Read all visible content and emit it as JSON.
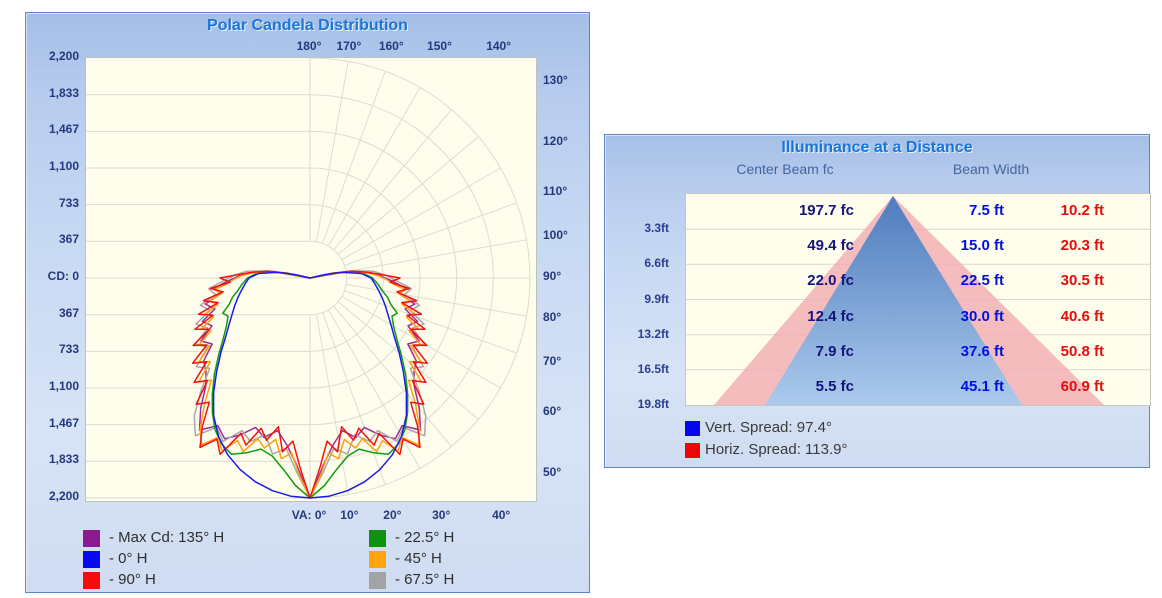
{
  "polar_panel": {
    "title": "Polar Candela Distribution",
    "cd_tick_labels": [
      "2,200",
      "1,833",
      "1,467",
      "1,100",
      "733",
      "367",
      "CD: 0",
      "367",
      "733",
      "1,100",
      "1,467",
      "1,833",
      "2,200"
    ],
    "top_angle_labels": [
      "180°",
      "170°",
      "160°",
      "150°",
      "140°"
    ],
    "right_angle_labels": [
      "130°",
      "120°",
      "110°",
      "100°",
      "90°",
      "80°",
      "70°",
      "60°",
      "50°"
    ],
    "bottom_angle_labels": [
      "VA: 0°",
      "10°",
      "20°",
      "30°",
      "40°"
    ],
    "legend": [
      {
        "label": "- Max Cd: 135° H",
        "color": "#8d1a8d"
      },
      {
        "label": "- 0° H",
        "color": "#0909f0"
      },
      {
        "label": "- 90° H",
        "color": "#f50b0b"
      },
      {
        "label": "- 22.5° H",
        "color": "#0f930f"
      },
      {
        "label": "- 45° H",
        "color": "#ffa40c"
      },
      {
        "label": "- 67.5° H",
        "color": "#a3a3a3"
      }
    ]
  },
  "illuminance_panel": {
    "title": "Illuminance at a Distance",
    "col_headers": [
      "Center Beam fc",
      "Beam Width"
    ],
    "rows": [
      {
        "distance": "3.3ft",
        "fc": "197.7 fc",
        "width_v": "7.5 ft",
        "width_h": "10.2 ft"
      },
      {
        "distance": "6.6ft",
        "fc": "49.4 fc",
        "width_v": "15.0 ft",
        "width_h": "20.3 ft"
      },
      {
        "distance": "9.9ft",
        "fc": "22.0 fc",
        "width_v": "22.5 ft",
        "width_h": "30.5 ft"
      },
      {
        "distance": "13.2ft",
        "fc": "12.4 fc",
        "width_v": "30.0 ft",
        "width_h": "40.6 ft"
      },
      {
        "distance": "16.5ft",
        "fc": "7.9 fc",
        "width_v": "37.6 ft",
        "width_h": "50.8 ft"
      },
      {
        "distance": "19.8ft",
        "fc": "5.5 fc",
        "width_v": "45.1 ft",
        "width_h": "60.9 ft"
      }
    ],
    "vert_spread_label": "Vert.  Spread: 97.4°",
    "horiz_spread_label": "Horiz. Spread: 113.9°",
    "vert_color": "#0606ee",
    "horiz_color": "#ee0606"
  },
  "chart_data": [
    {
      "type": "line",
      "subtype": "polar-photometric",
      "title": "Polar Candela Distribution",
      "units": "candela",
      "radial_ticks": [
        0,
        367,
        733,
        1100,
        1467,
        1833,
        2200
      ],
      "max_cd": 2200,
      "angle_ticks_deg": [
        0,
        10,
        20,
        30,
        40,
        50,
        60,
        70,
        80,
        90,
        100,
        110,
        120,
        130,
        140,
        150,
        160,
        170,
        180
      ],
      "mirrored": true,
      "grid_color": "#dcdcd1",
      "series": [
        {
          "name": "Max Cd: 135° H",
          "color": "#9b2d9b",
          "points": [
            [
              0,
              2200
            ],
            [
              4,
              1880
            ],
            [
              8,
              1680
            ],
            [
              12,
              1560
            ],
            [
              16,
              1660
            ],
            [
              20,
              1590
            ],
            [
              24,
              1720
            ],
            [
              28,
              1820
            ],
            [
              32,
              1740
            ],
            [
              36,
              1880
            ],
            [
              40,
              1700
            ],
            [
              44,
              1500
            ],
            [
              48,
              1400
            ],
            [
              52,
              1350
            ],
            [
              56,
              1180
            ],
            [
              60,
              1260
            ],
            [
              64,
              1090
            ],
            [
              68,
              1160
            ],
            [
              72,
              1000
            ],
            [
              76,
              1080
            ],
            [
              80,
              910
            ],
            [
              84,
              960
            ],
            [
              88,
              820
            ],
            [
              92,
              700
            ],
            [
              96,
              590
            ],
            [
              100,
              380
            ],
            [
              104,
              0
            ]
          ]
        },
        {
          "name": "67.5° H",
          "color": "#a8a8a8",
          "points": [
            [
              0,
              2200
            ],
            [
              4,
              1940
            ],
            [
              8,
              1720
            ],
            [
              12,
              1800
            ],
            [
              16,
              1630
            ],
            [
              20,
              1740
            ],
            [
              24,
              1670
            ],
            [
              28,
              1850
            ],
            [
              32,
              1760
            ],
            [
              36,
              1950
            ],
            [
              40,
              1800
            ],
            [
              44,
              1570
            ],
            [
              48,
              1350
            ],
            [
              52,
              1440
            ],
            [
              56,
              1240
            ],
            [
              60,
              1320
            ],
            [
              64,
              1140
            ],
            [
              68,
              1230
            ],
            [
              72,
              1050
            ],
            [
              76,
              1130
            ],
            [
              80,
              960
            ],
            [
              84,
              1020
            ],
            [
              88,
              870
            ],
            [
              92,
              760
            ],
            [
              96,
              640
            ],
            [
              100,
              420
            ],
            [
              104,
              0
            ]
          ]
        },
        {
          "name": "22.5° H",
          "color": "#119c11",
          "points": [
            [
              0,
              2200
            ],
            [
              4,
              2080
            ],
            [
              8,
              1930
            ],
            [
              12,
              1820
            ],
            [
              16,
              1780
            ],
            [
              20,
              1860
            ],
            [
              24,
              1930
            ],
            [
              28,
              1880
            ],
            [
              32,
              1790
            ],
            [
              36,
              1660
            ],
            [
              40,
              1520
            ],
            [
              45,
              1350
            ],
            [
              50,
              1190
            ],
            [
              55,
              1060
            ],
            [
              60,
              965
            ],
            [
              65,
              905
            ],
            [
              68,
              940
            ],
            [
              72,
              850
            ],
            [
              76,
              800
            ],
            [
              80,
              735
            ],
            [
              85,
              680
            ],
            [
              90,
              625
            ],
            [
              95,
              535
            ],
            [
              100,
              345
            ],
            [
              104,
              0
            ]
          ]
        },
        {
          "name": "45° H",
          "color": "#ffa011",
          "points": [
            [
              0,
              2200
            ],
            [
              3,
              1980
            ],
            [
              6,
              1760
            ],
            [
              9,
              1830
            ],
            [
              12,
              1650
            ],
            [
              15,
              1760
            ],
            [
              18,
              1690
            ],
            [
              21,
              1860
            ],
            [
              24,
              1780
            ],
            [
              27,
              1940
            ],
            [
              30,
              1840
            ],
            [
              33,
              1990
            ],
            [
              36,
              1870
            ],
            [
              40,
              1640
            ],
            [
              44,
              1420
            ],
            [
              47,
              1520
            ],
            [
              50,
              1300
            ],
            [
              53,
              1390
            ],
            [
              56,
              1210
            ],
            [
              59,
              1290
            ],
            [
              62,
              1120
            ],
            [
              65,
              1190
            ],
            [
              68,
              1040
            ],
            [
              71,
              1110
            ],
            [
              74,
              960
            ],
            [
              77,
              1030
            ],
            [
              80,
              900
            ],
            [
              83,
              960
            ],
            [
              86,
              830
            ],
            [
              89,
              760
            ],
            [
              92,
              680
            ],
            [
              95,
              580
            ],
            [
              98,
              420
            ],
            [
              101,
              230
            ],
            [
              104,
              0
            ]
          ]
        },
        {
          "name": "90° H",
          "color": "#f51111",
          "points": [
            [
              0,
              2200
            ],
            [
              3,
              1900
            ],
            [
              6,
              1640
            ],
            [
              9,
              1760
            ],
            [
              12,
              1520
            ],
            [
              15,
              1680
            ],
            [
              18,
              1580
            ],
            [
              21,
              1790
            ],
            [
              24,
              1700
            ],
            [
              27,
              1980
            ],
            [
              30,
              1860
            ],
            [
              33,
              2020
            ],
            [
              36,
              1830
            ],
            [
              39,
              1600
            ],
            [
              42,
              1700
            ],
            [
              45,
              1450
            ],
            [
              48,
              1560
            ],
            [
              51,
              1330
            ],
            [
              54,
              1450
            ],
            [
              57,
              1230
            ],
            [
              60,
              1350
            ],
            [
              63,
              1130
            ],
            [
              66,
              1260
            ],
            [
              69,
              1040
            ],
            [
              72,
              1170
            ],
            [
              75,
              950
            ],
            [
              78,
              1090
            ],
            [
              81,
              880
            ],
            [
              84,
              1000
            ],
            [
              87,
              800
            ],
            [
              90,
              900
            ],
            [
              93,
              700
            ],
            [
              96,
              560
            ],
            [
              99,
              430
            ],
            [
              102,
              240
            ],
            [
              105,
              0
            ]
          ]
        },
        {
          "name": "0° H",
          "color": "#1a1af0",
          "points": [
            [
              0,
              2200
            ],
            [
              5,
              2190
            ],
            [
              10,
              2160
            ],
            [
              15,
              2110
            ],
            [
              20,
              2040
            ],
            [
              25,
              1950
            ],
            [
              30,
              1830
            ],
            [
              35,
              1680
            ],
            [
              40,
              1500
            ],
            [
              45,
              1320
            ],
            [
              50,
              1165
            ],
            [
              55,
              1030
            ],
            [
              60,
              935
            ],
            [
              65,
              860
            ],
            [
              70,
              800
            ],
            [
              75,
              745
            ],
            [
              80,
              695
            ],
            [
              85,
              650
            ],
            [
              90,
              610
            ],
            [
              95,
              515
            ],
            [
              100,
              330
            ],
            [
              103,
              150
            ],
            [
              105,
              0
            ]
          ]
        }
      ]
    },
    {
      "type": "table",
      "title": "Illuminance at a Distance",
      "distance_ft": [
        3.3,
        6.6,
        9.9,
        13.2,
        16.5,
        19.8
      ],
      "center_beam_fc": [
        197.7,
        49.4,
        22.0,
        12.4,
        7.9,
        5.5
      ],
      "beam_width_vert_ft": [
        7.5,
        15.0,
        22.5,
        30.0,
        37.6,
        45.1
      ],
      "beam_width_horiz_ft": [
        10.2,
        20.3,
        30.5,
        40.6,
        50.8,
        60.9
      ],
      "vert_spread_deg": 97.4,
      "horiz_spread_deg": 113.9
    }
  ]
}
